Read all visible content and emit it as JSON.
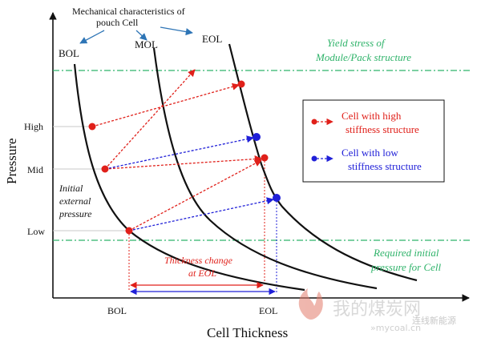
{
  "annotations": {
    "mech_line1": "Mechanical characteristics of",
    "mech_line2": "pouch Cell",
    "yield_line1": "Yield stress of",
    "yield_line2": "Module/Pack structure",
    "initial_line1": "Initial",
    "initial_line2": "external",
    "initial_line3": "pressure",
    "required_line1": "Required initial",
    "required_line2": "pressure for Cell",
    "thickness_line1": "Thickness change",
    "thickness_line2": "at EOL"
  },
  "curves": {
    "bol": "BOL",
    "mol": "MOL",
    "eol": "EOL"
  },
  "axes": {
    "ylabel": "Pressure",
    "xlabel": "Cell Thickness",
    "y_ticks": [
      "High",
      "Mid",
      "Low"
    ],
    "x_ticks": [
      "BOL",
      "EOL"
    ]
  },
  "legend": {
    "high": [
      "Cell with high",
      "stiffness structure"
    ],
    "low": [
      "Cell with low",
      "stiffness structure"
    ]
  },
  "watermark": {
    "text": "我的煤炭网",
    "url": "»mycoal.cn",
    "badge": "连线新能源"
  },
  "colors": {
    "high_stiffness": "#e0201a",
    "low_stiffness": "#2020d8",
    "guide_green": "#2fb36a",
    "curve": "#111111"
  }
}
